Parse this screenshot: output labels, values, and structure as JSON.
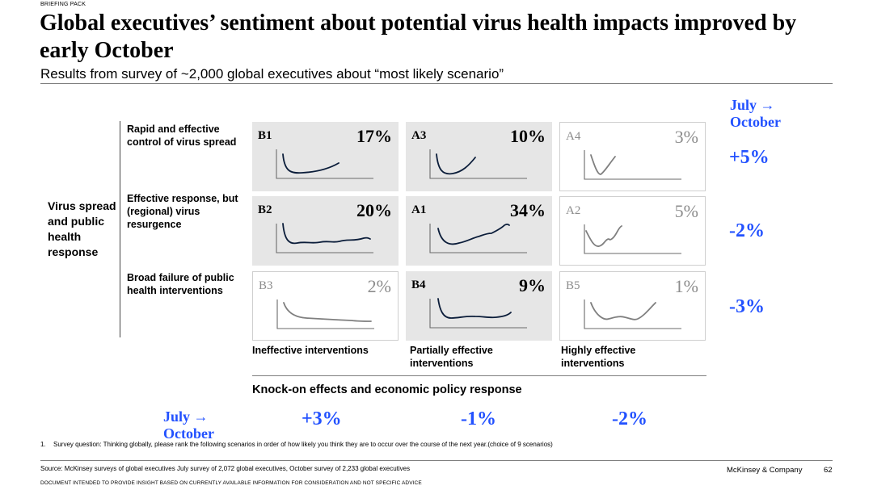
{
  "header": {
    "tag": "BRIEFING PACK",
    "title": "Global executives’ sentiment about potential virus health impacts improved by early October",
    "subtitle": "Results from survey of ~2,000 global executives about “most likely scenario”"
  },
  "y_axis_title": "Virus spread and public health response",
  "rows": [
    {
      "label": "Rapid and effective control of virus spread",
      "change": "+5%"
    },
    {
      "label": "Effective response, but (regional) virus resurgence",
      "change": "-2%"
    },
    {
      "label": "Broad failure of public health interventions",
      "change": "-3%"
    }
  ],
  "x_axis_title": "Knock-on effects and economic policy response",
  "columns": [
    {
      "label": "Ineffective interventions",
      "change": "+3%"
    },
    {
      "label": "Partially effective interventions",
      "change": "-1%"
    },
    {
      "label": "Highly effective interventions",
      "change": "-2%"
    }
  ],
  "july_october_label": "July → October",
  "footnote": {
    "number": "1.",
    "text": "Survey question: Thinking globally, please rank the following scenarios in order of how likely you think they are to occur over the course of the next year.(choice of 9 scenarios)"
  },
  "source": "Source: McKinsey surveys of global executives July survey of 2,072 global executives, October survey of 2,233 global executives",
  "company": "McKinsey & Company",
  "page_number": "62",
  "disclaimer": "DOCUMENT INTENDED TO PROVIDE INSIGHT BASED ON CURRENTLY AVAILABLE INFORMATION FOR CONSIDERATION AND NOT SPECIFIC ADVICE",
  "colors": {
    "accent": "#2251ff",
    "highlight_cell": "#e6e6e6",
    "muted_text": "#8c8c8c",
    "curve_dark": "#0b1d3a",
    "curve_muted": "#7f7f7f"
  },
  "chart_data": {
    "type": "table",
    "rows": [
      "Rapid and effective control of virus spread",
      "Effective response, but (regional) virus resurgence",
      "Broad failure of public health interventions"
    ],
    "columns": [
      "Ineffective interventions",
      "Partially effective interventions",
      "Highly effective interventions"
    ],
    "cells": [
      [
        {
          "code": "B1",
          "pct": "17%",
          "value": 17,
          "highlight": true
        },
        {
          "code": "A3",
          "pct": "10%",
          "value": 10,
          "highlight": true
        },
        {
          "code": "A4",
          "pct": "3%",
          "value": 3,
          "highlight": false
        }
      ],
      [
        {
          "code": "B2",
          "pct": "20%",
          "value": 20,
          "highlight": true
        },
        {
          "code": "A1",
          "pct": "34%",
          "value": 34,
          "highlight": true
        },
        {
          "code": "A2",
          "pct": "5%",
          "value": 5,
          "highlight": false
        }
      ],
      [
        {
          "code": "B3",
          "pct": "2%",
          "value": 2,
          "highlight": false
        },
        {
          "code": "B4",
          "pct": "9%",
          "value": 9,
          "highlight": true
        },
        {
          "code": "B5",
          "pct": "1%",
          "value": 1,
          "highlight": false
        }
      ]
    ],
    "row_changes": [
      "+5%",
      "-2%",
      "-3%"
    ],
    "column_changes": [
      "+3%",
      "-1%",
      "-2%"
    ]
  }
}
